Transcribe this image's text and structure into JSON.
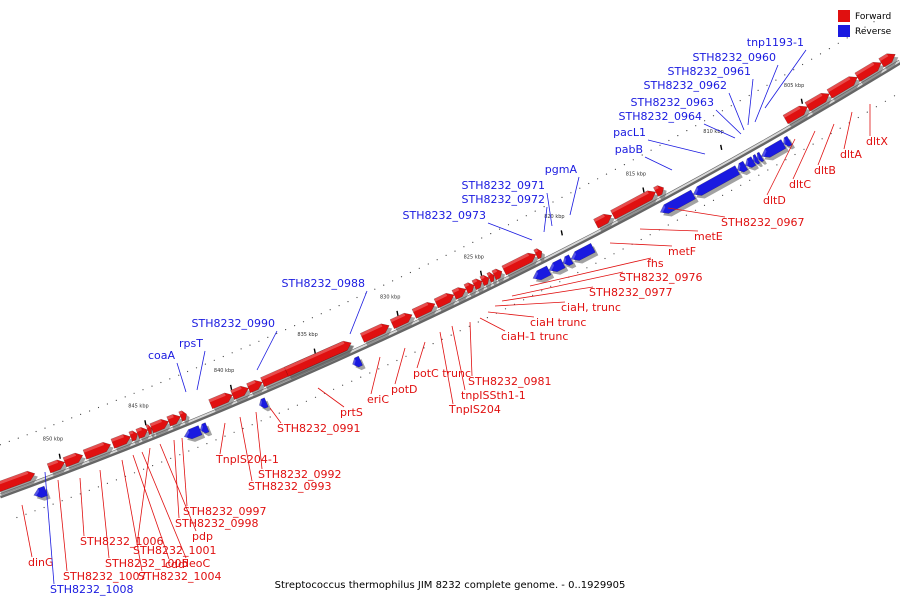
{
  "caption": "Streptococcus thermophilus JIM 8232 complete genome. - 0..1929905",
  "legend": [
    {
      "label": "Forward",
      "color": "#e01010"
    },
    {
      "label": "Reverse",
      "color": "#1a1ae0"
    }
  ],
  "colors": {
    "forward": "#e01010",
    "reverse": "#1a1ae0",
    "axis": "#888888"
  },
  "ticks": [
    "805 kbp",
    "810 kbp",
    "815 kbp",
    "820 kbp",
    "825 kbp",
    "830 kbp",
    "835 kbp",
    "840 kbp",
    "845 kbp",
    "850 kbp"
  ],
  "genes": [
    {
      "label": "dinG",
      "strand": "forward"
    },
    {
      "label": "STH8232_1008",
      "strand": "reverse"
    },
    {
      "label": "STH8232_1007",
      "strand": "forward"
    },
    {
      "label": "STH8232_1006",
      "strand": "forward"
    },
    {
      "label": "STH8232_1005",
      "strand": "forward"
    },
    {
      "label": "STH8232_1004",
      "strand": "forward"
    },
    {
      "label": "cdd",
      "strand": "forward"
    },
    {
      "label": "deoC",
      "strand": "forward"
    },
    {
      "label": "STH8232_1001",
      "strand": "forward"
    },
    {
      "label": "pdp",
      "strand": "forward"
    },
    {
      "label": "STH8232_0998",
      "strand": "forward"
    },
    {
      "label": "STH8232_0997",
      "strand": "forward"
    },
    {
      "label": "TnpIS204-1",
      "strand": "forward"
    },
    {
      "label": "STH8232_0993",
      "strand": "forward"
    },
    {
      "label": "STH8232_0992",
      "strand": "forward"
    },
    {
      "label": "STH8232_0991",
      "strand": "forward"
    },
    {
      "label": "prtS",
      "strand": "forward"
    },
    {
      "label": "eriC",
      "strand": "forward"
    },
    {
      "label": "potD",
      "strand": "forward"
    },
    {
      "label": "potC trunc",
      "strand": "forward"
    },
    {
      "label": "TnpIS204",
      "strand": "forward"
    },
    {
      "label": "tnpISSth1-1",
      "strand": "forward"
    },
    {
      "label": "STH8232_0981",
      "strand": "forward"
    },
    {
      "label": "ciaH-1 trunc",
      "strand": "forward"
    },
    {
      "label": "ciaH trunc",
      "strand": "forward"
    },
    {
      "label": "ciaH, trunc",
      "strand": "forward"
    },
    {
      "label": "STH8232_0977",
      "strand": "forward"
    },
    {
      "label": "STH8232_0976",
      "strand": "forward"
    },
    {
      "label": "fhs",
      "strand": "forward"
    },
    {
      "label": "metF",
      "strand": "forward"
    },
    {
      "label": "metE",
      "strand": "forward"
    },
    {
      "label": "STH8232_0967",
      "strand": "forward"
    },
    {
      "label": "dltD",
      "strand": "forward"
    },
    {
      "label": "dltC",
      "strand": "forward"
    },
    {
      "label": "dltB",
      "strand": "forward"
    },
    {
      "label": "dltA",
      "strand": "forward"
    },
    {
      "label": "dltX",
      "strand": "forward"
    },
    {
      "label": "coaA",
      "strand": "reverse"
    },
    {
      "label": "rpsT",
      "strand": "reverse"
    },
    {
      "label": "STH8232_0990",
      "strand": "reverse"
    },
    {
      "label": "STH8232_0988",
      "strand": "reverse"
    },
    {
      "label": "STH8232_0973",
      "strand": "reverse"
    },
    {
      "label": "STH8232_0972",
      "strand": "reverse"
    },
    {
      "label": "STH8232_0971",
      "strand": "reverse"
    },
    {
      "label": "pgmA",
      "strand": "reverse"
    },
    {
      "label": "pabB",
      "strand": "reverse"
    },
    {
      "label": "pacL1",
      "strand": "reverse"
    },
    {
      "label": "STH8232_0964",
      "strand": "reverse"
    },
    {
      "label": "STH8232_0963",
      "strand": "reverse"
    },
    {
      "label": "STH8232_0962",
      "strand": "reverse"
    },
    {
      "label": "STH8232_0961",
      "strand": "reverse"
    },
    {
      "label": "STH8232_0960",
      "strand": "reverse"
    },
    {
      "label": "tnp1193-1",
      "strand": "reverse"
    }
  ]
}
